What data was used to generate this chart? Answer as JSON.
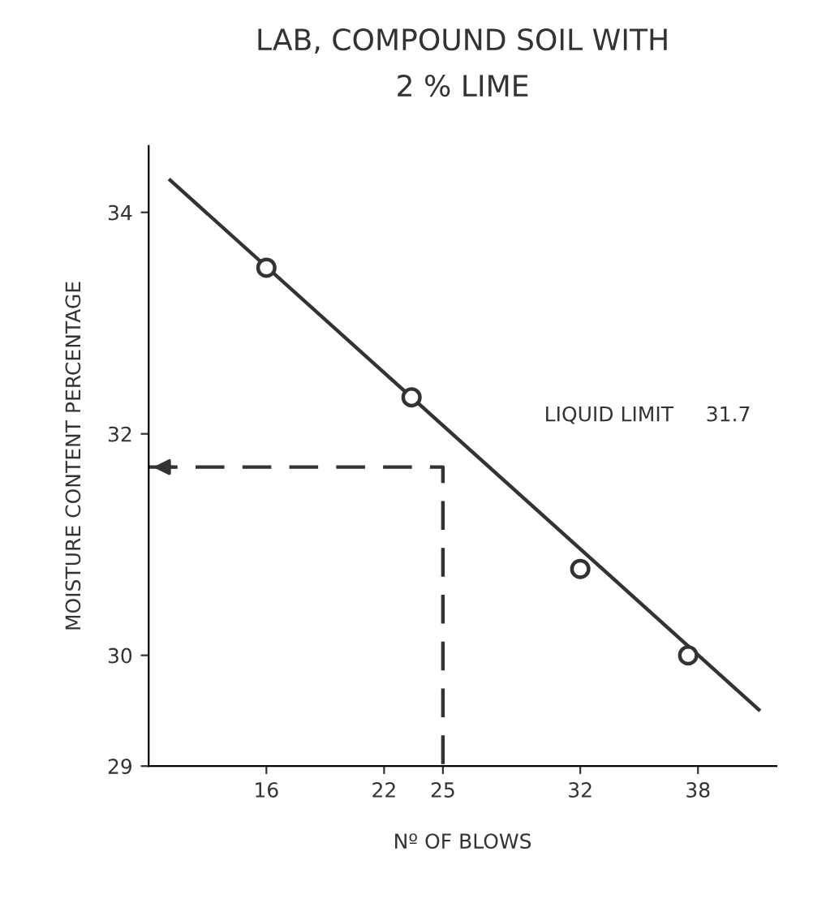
{
  "chart_data": {
    "type": "scatter",
    "title": "LAB, COMPOUND SOIL WITH\n2 % LIME",
    "xlabel": "Nº OF BLOWS",
    "ylabel": "MOISTURE CONTENT PERCENTAGE",
    "series": [
      {
        "color": "#333333",
        "marker": "circle",
        "x": [
          16,
          23.4,
          32,
          37.5
        ],
        "values": [
          33.5,
          32.33,
          30.78,
          30.0
        ]
      },
      {
        "type": "line",
        "color": "#333333",
        "marker": "none",
        "line_style": "solid",
        "x": [
          11.1,
          41.1
        ],
        "values": [
          34.29,
          29.51
        ]
      },
      {
        "type": "line",
        "color": "#333333",
        "marker": "none",
        "line_style": "dashed",
        "x": [
          10,
          25,
          25
        ],
        "values": [
          31.7,
          31.7,
          29
        ]
      }
    ],
    "annotations": [
      "LIQUID LIMIT     31.7"
    ],
    "xlim": [
      10,
      42
    ],
    "xticks": [
      16,
      22,
      25,
      32,
      38
    ],
    "ylim": [
      29,
      34.6
    ],
    "yticks": [
      29,
      30,
      32,
      34
    ],
    "grid": false,
    "legend": false
  }
}
